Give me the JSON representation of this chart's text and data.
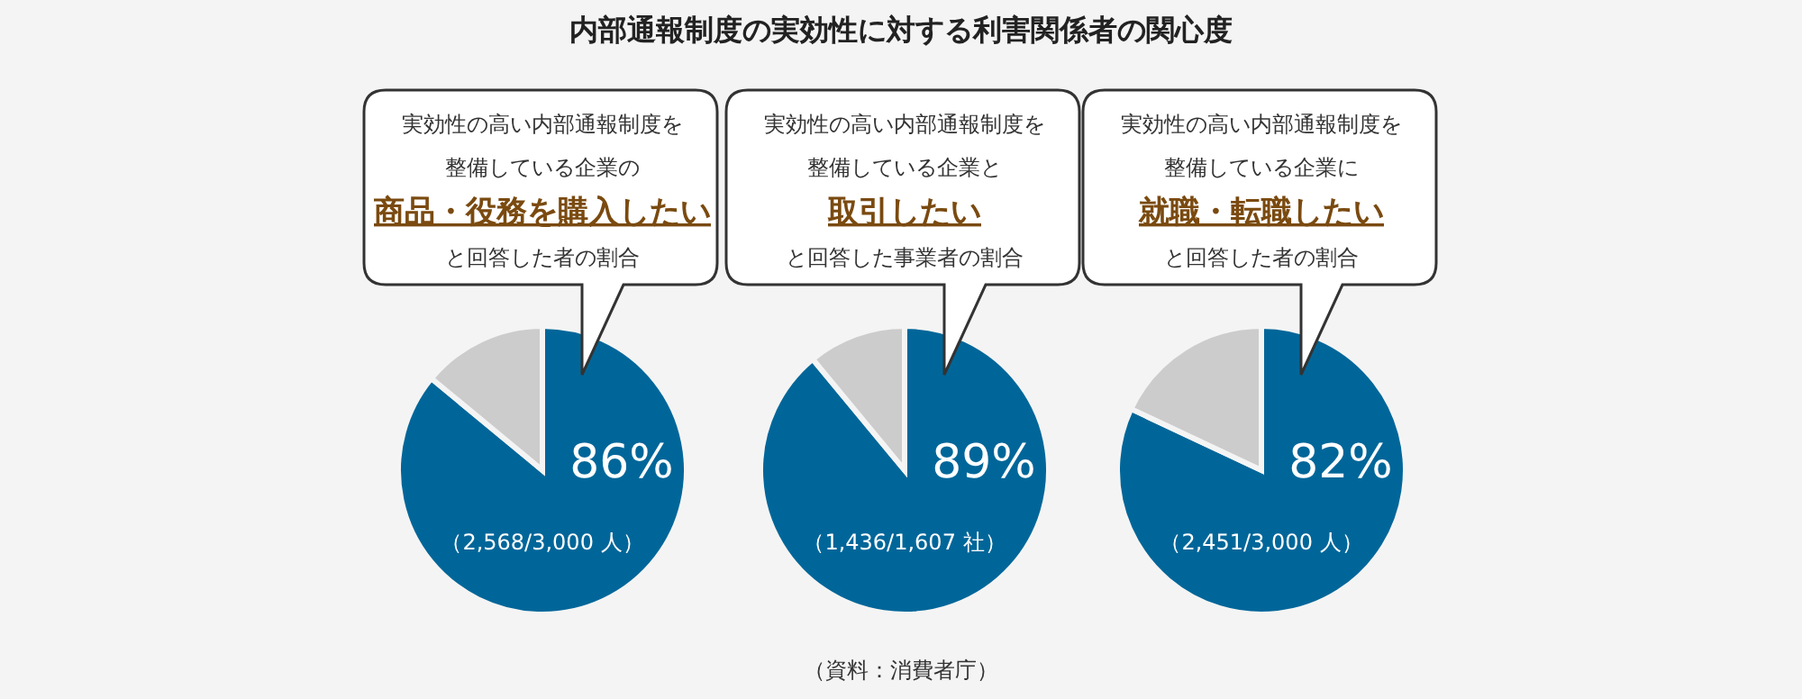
{
  "chart_data": [
    {
      "type": "pie",
      "title": "内部通報制度の実効性に対する利害関係者の関心度",
      "categories": [
        null,
        null
      ],
      "values": [
        86,
        14
      ],
      "colors": [
        "#006699",
        "#cccccc"
      ],
      "value_labels": [
        "86%",
        null
      ],
      "annotations": [
        "実効性の高い内部通報制度を",
        "整備している企業の",
        "商品・役務を購入したい",
        "と回答した者の割合",
        "（2,568/3,000 人）"
      ]
    },
    {
      "type": "pie",
      "categories": [
        null,
        null
      ],
      "values": [
        89,
        11
      ],
      "colors": [
        "#006699",
        "#cccccc"
      ],
      "value_labels": [
        "89%",
        null
      ],
      "annotations": [
        "実効性の高い内部通報制度を",
        "整備している企業と",
        "取引したい",
        "と回答した事業者の割合",
        "（1,436/1,607 社）",
        "（資料：消費者庁）"
      ]
    },
    {
      "type": "pie",
      "categories": [
        null,
        null
      ],
      "values": [
        82,
        18
      ],
      "colors": [
        "#006699",
        "#cccccc"
      ],
      "value_labels": [
        "82%",
        null
      ],
      "annotations": [
        "実効性の高い内部通報制度を",
        "整備している企業に",
        "就職・転職したい",
        "と回答した者の割合",
        "（2,451/3,000 人）"
      ]
    }
  ]
}
